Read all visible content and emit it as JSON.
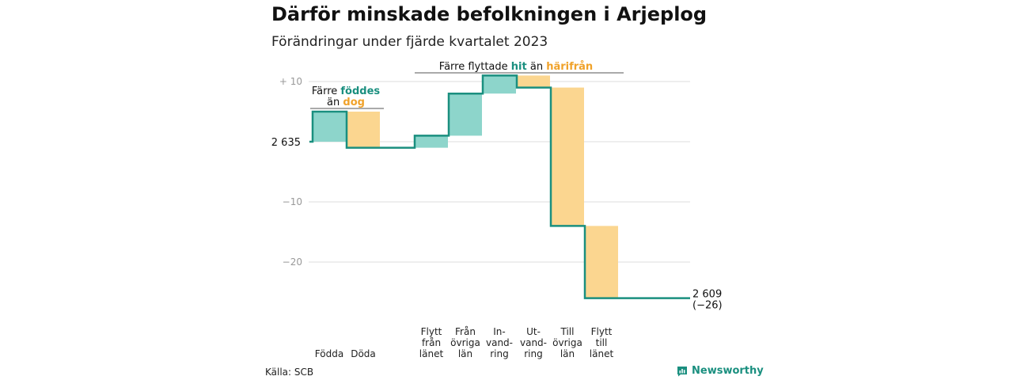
{
  "chart_data": {
    "type": "waterfall",
    "title": "Därför minskade befolkningen i Arjeplog",
    "subtitle": "Förändringar under fjärde kvartalet 2023",
    "start_value_label": "2 635",
    "end_value_label": "2 609",
    "end_change_label": "(−26)",
    "ylim": [
      -26,
      11
    ],
    "y_ticks": [
      {
        "value": 10,
        "label": "+ 10"
      },
      {
        "value": 0,
        "label": ""
      },
      {
        "value": -10,
        "label": "−10"
      },
      {
        "value": -20,
        "label": "−20"
      }
    ],
    "grid": true,
    "steps": [
      {
        "label": [
          "Födda"
        ],
        "value": 5
      },
      {
        "label": [
          "Döda"
        ],
        "value": -6
      },
      {
        "label": [
          ""
        ],
        "value": 0
      },
      {
        "label": [
          "Flytt",
          "från",
          "länet"
        ],
        "value": 2
      },
      {
        "label": [
          "Från",
          "övriga",
          "län"
        ],
        "value": 7
      },
      {
        "label": [
          "In-",
          "vand-",
          "ring"
        ],
        "value": 3
      },
      {
        "label": [
          "Ut-",
          "vand-",
          "ring"
        ],
        "value": -2
      },
      {
        "label": [
          "Till",
          "övriga",
          "län"
        ],
        "value": -23
      },
      {
        "label": [
          "Flytt",
          "till",
          "länet"
        ],
        "value": -12
      }
    ],
    "annotations": {
      "births": {
        "pre": "Färre",
        "highlight1": "föddes",
        "mid": "än",
        "highlight2": "dog"
      },
      "moves": {
        "pre": "Färre flyttade",
        "highlight1": "hit",
        "mid": "än",
        "highlight2": "härifrån"
      }
    },
    "colors": {
      "positive": "#8dd5cb",
      "negative": "#fbd690",
      "line": "#1a8f7f",
      "highlight_pos": "#1a8f7f",
      "highlight_neg": "#f0a22a",
      "grid": "#dddddd",
      "tick": "#999999"
    }
  },
  "footer": {
    "source": "Källa: SCB",
    "brand": "Newsworthy"
  }
}
